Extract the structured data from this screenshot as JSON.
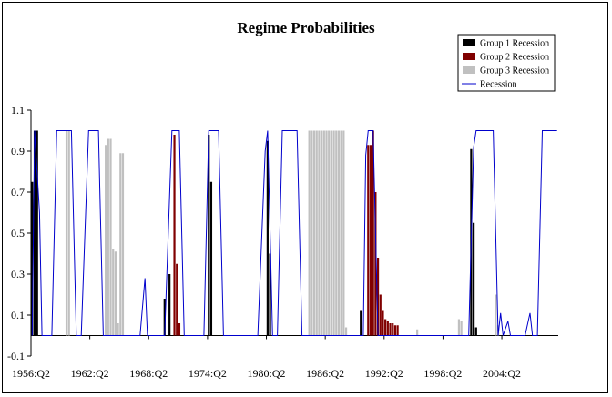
{
  "chart_data": {
    "type": "bar",
    "title": "Regime Probabilities",
    "xlabel": "",
    "ylabel": "",
    "ylim": [
      -0.1,
      1.1
    ],
    "yticks": [
      "-0.1",
      "0.1",
      "0.3",
      "0.5",
      "0.7",
      "0.9",
      "1.1"
    ],
    "ytick_values": [
      -0.1,
      0.1,
      0.3,
      0.5,
      0.7,
      0.9,
      1.1
    ],
    "xticks": [
      "1956:Q2",
      "1962:Q2",
      "1968:Q2",
      "1974:Q2",
      "1980:Q2",
      "1986:Q2",
      "1992:Q2",
      "1998:Q2",
      "2004:Q2"
    ],
    "start_period": "1956:Q2",
    "end_period": "2009:Q4",
    "grid": false,
    "legend_position": "top-right",
    "colors": {
      "group1": "#000000",
      "group2": "#800000",
      "group3": "#c0c0c0",
      "recession": "#0000cc"
    },
    "series": [
      {
        "name": "Group 1 Recession",
        "kind": "bar",
        "points": [
          [
            "1956:Q2",
            0.75
          ],
          [
            "1956:Q3",
            1.0
          ],
          [
            "1956:Q4",
            1.0
          ],
          [
            "1969:Q4",
            0.18
          ],
          [
            "1970:Q2",
            0.3
          ],
          [
            "1974:Q2",
            0.98
          ],
          [
            "1974:Q3",
            0.75
          ],
          [
            "1980:Q2",
            0.95
          ],
          [
            "1980:Q3",
            0.4
          ],
          [
            "1989:Q4",
            0.12
          ],
          [
            "2001:Q1",
            0.91
          ],
          [
            "2001:Q2",
            0.55
          ],
          [
            "2001:Q3",
            0.04
          ]
        ]
      },
      {
        "name": "Group 2 Recession",
        "kind": "bar",
        "points": [
          [
            "1970:Q4",
            0.98
          ],
          [
            "1971:Q1",
            0.35
          ],
          [
            "1971:Q2",
            0.06
          ],
          [
            "1990:Q3",
            0.93
          ],
          [
            "1990:Q4",
            0.93
          ],
          [
            "1991:Q1",
            1.0
          ],
          [
            "1991:Q2",
            0.7
          ],
          [
            "1991:Q3",
            0.38
          ],
          [
            "1991:Q4",
            0.2
          ],
          [
            "1992:Q1",
            0.12
          ],
          [
            "1992:Q2",
            0.08
          ],
          [
            "1992:Q3",
            0.07
          ],
          [
            "1992:Q4",
            0.06
          ],
          [
            "1993:Q1",
            0.06
          ],
          [
            "1993:Q2",
            0.05
          ],
          [
            "1993:Q3",
            0.05
          ]
        ]
      },
      {
        "name": "Group 3 Recession",
        "kind": "bar",
        "points": [
          [
            "1959:Q4",
            1.0
          ],
          [
            "1960:Q1",
            1.0
          ],
          [
            "1963:Q4",
            0.93
          ],
          [
            "1964:Q1",
            0.96
          ],
          [
            "1964:Q2",
            0.96
          ],
          [
            "1964:Q3",
            0.42
          ],
          [
            "1964:Q4",
            0.41
          ],
          [
            "1965:Q1",
            0.06
          ],
          [
            "1965:Q2",
            0.89
          ],
          [
            "1965:Q3",
            0.89
          ],
          [
            "1984:Q3",
            1.0
          ],
          [
            "1984:Q4",
            1.0
          ],
          [
            "1985:Q1",
            1.0
          ],
          [
            "1985:Q2",
            1.0
          ],
          [
            "1985:Q3",
            1.0
          ],
          [
            "1985:Q4",
            1.0
          ],
          [
            "1986:Q1",
            1.0
          ],
          [
            "1986:Q2",
            1.0
          ],
          [
            "1986:Q3",
            1.0
          ],
          [
            "1986:Q4",
            1.0
          ],
          [
            "1987:Q1",
            1.0
          ],
          [
            "1987:Q2",
            1.0
          ],
          [
            "1987:Q3",
            1.0
          ],
          [
            "1987:Q4",
            1.0
          ],
          [
            "1988:Q1",
            1.0
          ],
          [
            "1988:Q2",
            0.04
          ],
          [
            "1995:Q3",
            0.03
          ],
          [
            "1999:Q4",
            0.08
          ],
          [
            "2000:Q1",
            0.07
          ],
          [
            "2003:Q3",
            0.2
          ],
          [
            "2003:Q4",
            0.05
          ]
        ]
      },
      {
        "name": "Recession",
        "kind": "line",
        "points": [
          [
            "1956:Q2",
            0.0
          ],
          [
            "1956:Q3",
            1.0
          ],
          [
            "1957:Q1",
            0.6
          ],
          [
            "1957:Q2",
            0.0
          ],
          [
            "1958:Q2",
            0.0
          ],
          [
            "1958:Q4",
            1.0
          ],
          [
            "1960:Q2",
            1.0
          ],
          [
            "1960:Q4",
            0.0
          ],
          [
            "1961:Q2",
            0.0
          ],
          [
            "1962:Q1",
            1.0
          ],
          [
            "1963:Q1",
            1.0
          ],
          [
            "1963:Q3",
            0.0
          ],
          [
            "1967:Q2",
            0.0
          ],
          [
            "1967:Q4",
            0.28
          ],
          [
            "1968:Q1",
            0.0
          ],
          [
            "1969:Q4",
            0.0
          ],
          [
            "1970:Q3",
            1.0
          ],
          [
            "1971:Q2",
            1.0
          ],
          [
            "1971:Q4",
            0.0
          ],
          [
            "1973:Q4",
            0.0
          ],
          [
            "1974:Q2",
            1.0
          ],
          [
            "1975:Q2",
            1.0
          ],
          [
            "1975:Q4",
            0.0
          ],
          [
            "1979:Q2",
            0.0
          ],
          [
            "1980:Q1",
            0.9
          ],
          [
            "1980:Q2",
            1.0
          ],
          [
            "1980:Q4",
            0.0
          ],
          [
            "1981:Q2",
            0.0
          ],
          [
            "1981:Q4",
            1.0
          ],
          [
            "1983:Q2",
            1.0
          ],
          [
            "1983:Q4",
            0.0
          ],
          [
            "1990:Q1",
            0.0
          ],
          [
            "1990:Q2",
            0.88
          ],
          [
            "1990:Q3",
            1.0
          ],
          [
            "1991:Q1",
            1.0
          ],
          [
            "1991:Q3",
            0.0
          ],
          [
            "2000:Q4",
            0.0
          ],
          [
            "2001:Q2",
            0.92
          ],
          [
            "2001:Q3",
            1.0
          ],
          [
            "2003:Q2",
            1.0
          ],
          [
            "2003:Q4",
            0.0
          ],
          [
            "2004:Q1",
            0.11
          ],
          [
            "2004:Q2",
            0.0
          ],
          [
            "2004:Q4",
            0.07
          ],
          [
            "2005:Q1",
            0.0
          ],
          [
            "2006:Q3",
            0.0
          ],
          [
            "2007:Q1",
            0.11
          ],
          [
            "2007:Q2",
            0.0
          ],
          [
            "2007:Q4",
            0.0
          ],
          [
            "2008:Q2",
            1.0
          ],
          [
            "2009:Q4",
            1.0
          ]
        ]
      }
    ]
  }
}
